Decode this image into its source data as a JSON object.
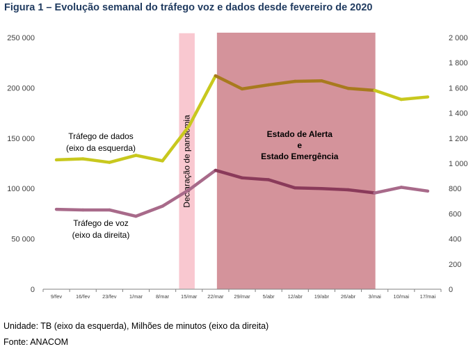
{
  "title": "Figura 1 – Evolução semanal do tráfego voz e dados desde fevereiro de 2020",
  "footer": {
    "unit_note": "Unidade: TB (eixo da esquerda), Milhões de minutos (eixo da direita)",
    "source": "Fonte: ANACOM"
  },
  "chart_data": {
    "type": "line",
    "categories": [
      "9/fev",
      "16/fev",
      "23/fev",
      "1/mar",
      "8/mar",
      "15/mar",
      "22/mar",
      "29/mar",
      "5/abr",
      "12/abr",
      "19/abr",
      "26/abr",
      "3/mai",
      "10/mai",
      "17/mai"
    ],
    "series": [
      {
        "name": "Tráfego de dados (eixo da esquerda)",
        "label_lines": [
          "Tráfego de dados",
          "(eixo da esquerda)"
        ],
        "axis": "left",
        "color_start": "#c8c81e",
        "color_state": "#a87a1e",
        "values": [
          128500,
          129500,
          126000,
          133000,
          127500,
          162000,
          212000,
          199000,
          203000,
          206500,
          207000,
          199500,
          197500,
          188500,
          191000
        ]
      },
      {
        "name": "Tráfego de voz (eixo da direita)",
        "label_lines": [
          "Tráfego de voz",
          "(eixo da direita)"
        ],
        "axis": "right",
        "color_start": "#a86a8a",
        "color_state": "#8a3a5a",
        "values": [
          635,
          630,
          630,
          580,
          660,
          790,
          945,
          885,
          870,
          805,
          800,
          790,
          765,
          810,
          780
        ]
      }
    ],
    "y_left": {
      "lim": [
        0,
        250000
      ],
      "ticks": [
        0,
        50000,
        100000,
        150000,
        200000,
        250000
      ],
      "tick_labels": [
        "0",
        "50 000",
        "100 000",
        "150 000",
        "200 000",
        "250 000"
      ]
    },
    "y_right": {
      "lim": [
        0,
        2000
      ],
      "ticks": [
        0,
        200,
        400,
        600,
        800,
        1000,
        1200,
        1400,
        1600,
        1800,
        2000
      ],
      "tick_labels": [
        "0",
        "200",
        "400",
        "600",
        "800",
        "1 000",
        "1 200",
        "1 400",
        "1 600",
        "1 800",
        "2 000"
      ]
    },
    "bands": [
      {
        "label": "Declaração de pandemia",
        "from_category": "15/mar",
        "color": "#f9c8d0",
        "border": "#ffffff"
      },
      {
        "label_lines": [
          "Estado de Alerta",
          "e",
          "Estado Emergência"
        ],
        "from_category": "22/mar",
        "to_category": "3/mai",
        "color": "#d4939b"
      }
    ],
    "grid": false
  }
}
